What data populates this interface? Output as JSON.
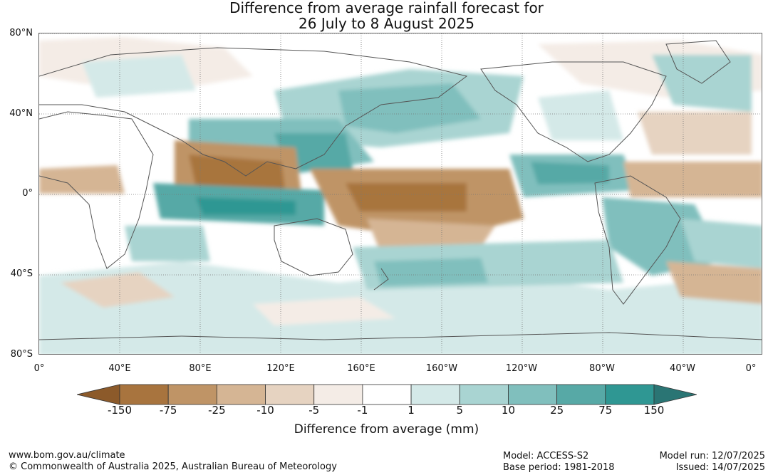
{
  "title": {
    "line1": "Difference from average rainfall forecast for",
    "line2": "26 July to 8 August 2025"
  },
  "map": {
    "lat_labels": [
      "80°N",
      "40°N",
      "0°",
      "40°S",
      "80°S"
    ],
    "lon_labels": [
      "0°",
      "40°E",
      "80°E",
      "120°E",
      "160°E",
      "160°W",
      "120°W",
      "80°W",
      "40°W",
      "0°"
    ]
  },
  "legend": {
    "ticks": [
      "-150",
      "-75",
      "-25",
      "-10",
      "-5",
      "-1",
      "1",
      "5",
      "10",
      "25",
      "75",
      "150"
    ],
    "colors": [
      "#8c5a2a",
      "#a8743e",
      "#bf9466",
      "#d5b594",
      "#e6d3c1",
      "#f4ece6",
      "#ffffff",
      "#d4e9e8",
      "#a9d4d2",
      "#80bfbd",
      "#57a9a6",
      "#2f9793",
      "#2a7574"
    ],
    "title": "Difference from average (mm)"
  },
  "footer": {
    "url": "www.bom.gov.au/climate",
    "copyright": "© Commonwealth of Australia 2025, Australian Bureau of Meteorology",
    "model": "Model: ACCESS-S2",
    "base_period": "Base period: 1981-2018",
    "model_run": "Model run: 12/07/2025",
    "issued": "Issued: 14/07/2025"
  }
}
